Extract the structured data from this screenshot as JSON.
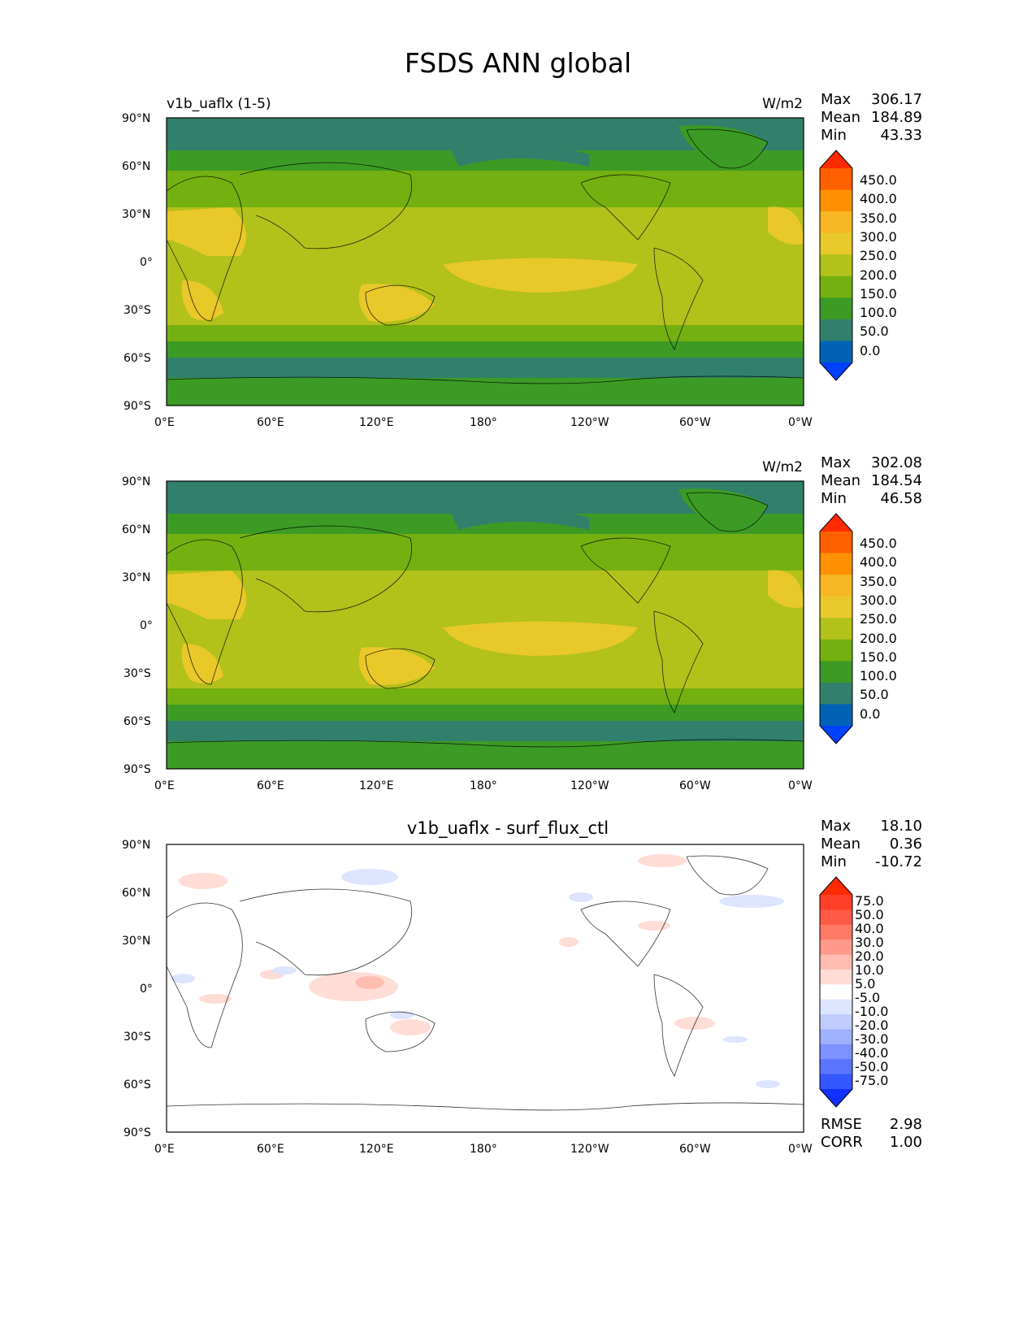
{
  "figure": {
    "title": "FSDS ANN global"
  },
  "axis_ticks": {
    "lat": [
      "90°N",
      "60°N",
      "30°N",
      "0°",
      "30°S",
      "60°S",
      "90°S"
    ],
    "lon": [
      "0°E",
      "60°E",
      "120°E",
      "180°",
      "120°W",
      "60°W",
      "0°W"
    ]
  },
  "panels": [
    {
      "id": "test",
      "left_title": "v1b_uaflx (1-5)",
      "center_title": "",
      "units": "W/m2",
      "stats": {
        "max_label": "Max",
        "max": "306.17",
        "mean_label": "Mean",
        "mean": "184.89",
        "min_label": "Min",
        "min": "43.33"
      },
      "colorbar": {
        "levels": [
          "450.0",
          "400.0",
          "350.0",
          "300.0",
          "250.0",
          "200.0",
          "150.0",
          "100.0",
          "50.0",
          "0.0"
        ],
        "colors": [
          "#ff2a00",
          "#ff6000",
          "#ff9100",
          "#f7b624",
          "#e9c82a",
          "#b3c11b",
          "#74b010",
          "#3c9b25",
          "#31806c",
          "#0062b4",
          "#0040ff"
        ]
      }
    },
    {
      "id": "reference",
      "left_title": "",
      "center_title": "",
      "units": "W/m2",
      "stats": {
        "max_label": "Max",
        "max": "302.08",
        "mean_label": "Mean",
        "mean": "184.54",
        "min_label": "Min",
        "min": "46.58"
      },
      "colorbar": {
        "levels": [
          "450.0",
          "400.0",
          "350.0",
          "300.0",
          "250.0",
          "200.0",
          "150.0",
          "100.0",
          "50.0",
          "0.0"
        ],
        "colors": [
          "#ff2a00",
          "#ff6000",
          "#ff9100",
          "#f7b624",
          "#e9c82a",
          "#b3c11b",
          "#74b010",
          "#3c9b25",
          "#31806c",
          "#0062b4",
          "#0040ff"
        ]
      }
    },
    {
      "id": "difference",
      "left_title": "",
      "center_title": "v1b_uaflx - surf_flux_ctl",
      "units": "",
      "stats": {
        "max_label": "Max",
        "max": "18.10",
        "mean_label": "Mean",
        "mean": "0.36",
        "min_label": "Min",
        "min": "-10.72"
      },
      "colorbar": {
        "levels": [
          "75.0",
          "50.0",
          "40.0",
          "30.0",
          "20.0",
          "10.0",
          "5.0",
          "-5.0",
          "-10.0",
          "-20.0",
          "-30.0",
          "-40.0",
          "-50.0",
          "-75.0"
        ],
        "colors": [
          "#ff2a00",
          "#ff3f28",
          "#ff5a45",
          "#ff7a66",
          "#ff9a8a",
          "#ffbcb0",
          "#ffdcd5",
          "#ffffff",
          "#dde4ff",
          "#c0ccff",
          "#9fb0ff",
          "#7d92ff",
          "#5a74ff",
          "#3456ff",
          "#1030ff"
        ]
      },
      "metrics": {
        "rmse_label": "RMSE",
        "rmse": "2.98",
        "corr_label": "CORR",
        "corr": "1.00"
      }
    }
  ],
  "chart_data": {
    "type": "heatmap",
    "title": "FSDS ANN global",
    "variable": "FSDS",
    "season": "ANN",
    "region": "global",
    "x_range": [
      0,
      360
    ],
    "y_range": [
      -90,
      90
    ],
    "panel_titles": [
      "v1b_uaflx (1-5)",
      "",
      "v1b_uaflx - surf_flux_ctl"
    ],
    "panel_stats": [
      {
        "max": 306.17,
        "mean": 184.89,
        "min": 43.33
      },
      {
        "max": 302.08,
        "mean": 184.54,
        "min": 46.58
      },
      {
        "max": 18.1,
        "mean": 0.36,
        "min": -10.72,
        "rmse": 2.98,
        "corr": 1.0
      }
    ],
    "zonal_band_values_approx": [
      {
        "lat_range": [
          60,
          90
        ],
        "value": 90
      },
      {
        "lat_range": [
          45,
          60
        ],
        "value": 130
      },
      {
        "lat_range": [
          30,
          45
        ],
        "value": 180
      },
      {
        "lat_range": [
          -15,
          30
        ],
        "value": 230
      },
      {
        "lat_range": [
          -35,
          -15
        ],
        "value": 220
      },
      {
        "lat_range": [
          -45,
          -35
        ],
        "value": 170
      },
      {
        "lat_range": [
          -65,
          -45
        ],
        "value": 110
      },
      {
        "lat_range": [
          -90,
          -65
        ],
        "value": 140
      }
    ]
  }
}
